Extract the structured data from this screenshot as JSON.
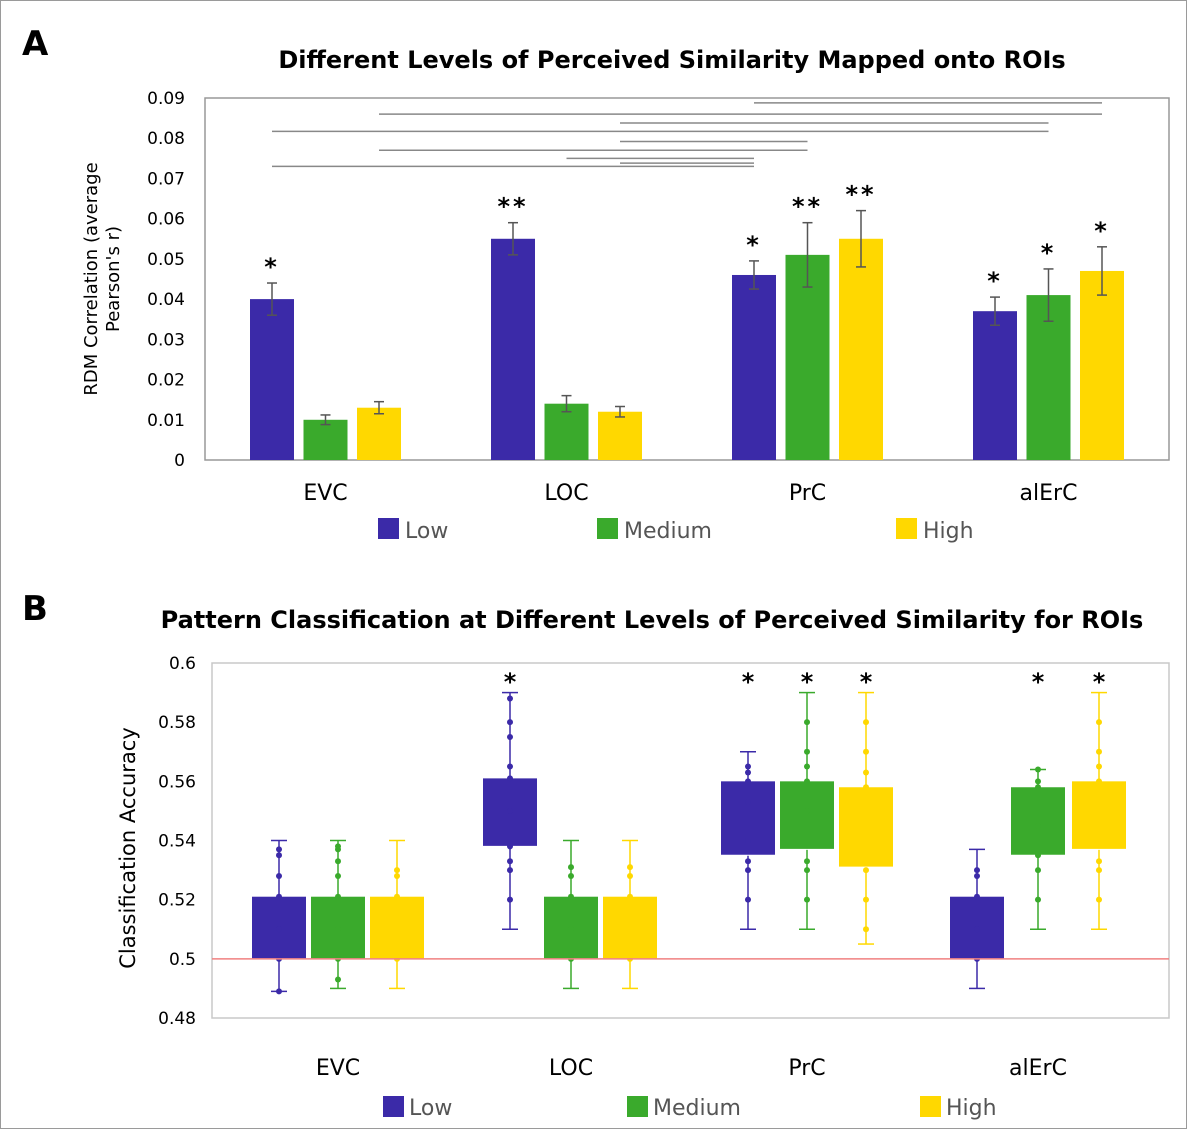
{
  "colors": {
    "low": "#3b2aa8",
    "medium": "#3aaa2c",
    "high": "#ffd800",
    "baseline": "#f08080",
    "axis": "#999999",
    "bracket": "#888888"
  },
  "chart_data": [
    {
      "panel": "A",
      "type": "bar",
      "title": "Different Levels of Perceived Similarity Mapped onto ROIs",
      "ylabel": "RDM Correlation (average Pearson's r)",
      "ylabel_lines": [
        "RDM Correlation (average",
        "Pearson's r)"
      ],
      "xlabel": "",
      "ylim": [
        0,
        0.09
      ],
      "yticks": [
        "0",
        "0.01",
        "0.02",
        "0.03",
        "0.04",
        "0.05",
        "0.06",
        "0.07",
        "0.08",
        "0.09"
      ],
      "categories": [
        "EVC",
        "LOC",
        "PrC",
        "alErC"
      ],
      "legend": "bottom",
      "series": [
        {
          "name": "Low",
          "values": [
            0.04,
            0.055,
            0.046,
            0.037
          ],
          "err": [
            0.004,
            0.004,
            0.0035,
            0.0035
          ],
          "sig": [
            "*",
            "**",
            "*",
            "*"
          ]
        },
        {
          "name": "Medium",
          "values": [
            0.01,
            0.014,
            0.051,
            0.041
          ],
          "err": [
            0.0012,
            0.002,
            0.008,
            0.0065
          ],
          "sig": [
            "",
            "",
            "**",
            "*"
          ]
        },
        {
          "name": "High",
          "values": [
            0.013,
            0.012,
            0.055,
            0.047
          ],
          "err": [
            0.0015,
            0.0013,
            0.007,
            0.006
          ],
          "sig": [
            "",
            "",
            "**",
            "*"
          ]
        }
      ],
      "comparisons": [
        {
          "from": [
            "PrC",
            "Low"
          ],
          "to": [
            "alErC",
            "High"
          ],
          "y": 0.0888
        },
        {
          "from": [
            "EVC",
            "High"
          ],
          "to": [
            "alErC",
            "High"
          ],
          "y": 0.086
        },
        {
          "from": [
            "LOC",
            "High"
          ],
          "to": [
            "alErC",
            "Medium"
          ],
          "y": 0.0838
        },
        {
          "from": [
            "EVC",
            "Low"
          ],
          "to": [
            "alErC",
            "Medium"
          ],
          "y": 0.0817
        },
        {
          "from": [
            "LOC",
            "High"
          ],
          "to": [
            "PrC",
            "Medium"
          ],
          "y": 0.0792
        },
        {
          "from": [
            "EVC",
            "High"
          ],
          "to": [
            "PrC",
            "Medium"
          ],
          "y": 0.077
        },
        {
          "from": [
            "LOC",
            "Medium"
          ],
          "to": [
            "PrC",
            "Low"
          ],
          "y": 0.075
        },
        {
          "from": [
            "LOC",
            "High"
          ],
          "to": [
            "PrC",
            "Low"
          ],
          "y": 0.0738
        },
        {
          "from": [
            "EVC",
            "Low"
          ],
          "to": [
            "PrC",
            "Low"
          ],
          "y": 0.073
        }
      ]
    },
    {
      "panel": "B",
      "type": "box",
      "title": "Pattern Classification at Different Levels of Perceived Similarity for ROIs",
      "ylabel": "Classification Accuracy",
      "xlabel": "",
      "ylim": [
        0.48,
        0.6
      ],
      "yticks": [
        "0.48",
        "0.5",
        "0.52",
        "0.54",
        "0.56",
        "0.58",
        "0.6"
      ],
      "categories": [
        "EVC",
        "LOC",
        "PrC",
        "alErC"
      ],
      "chance": 0.5,
      "legend": "bottom",
      "series": [
        {
          "name": "Low",
          "boxes": [
            {
              "min": 0.489,
              "q1": 0.5,
              "median": 0.5,
              "q3": 0.521,
              "max": 0.54,
              "points": [
                0.489,
                0.5,
                0.51,
                0.521,
                0.528,
                0.535,
                0.537
              ],
              "sig": ""
            },
            {
              "min": 0.51,
              "q1": 0.538,
              "median": 0.538,
              "q3": 0.561,
              "max": 0.59,
              "points": [
                0.52,
                0.53,
                0.533,
                0.538,
                0.55,
                0.561,
                0.565,
                0.575,
                0.58,
                0.588
              ],
              "sig": "*"
            },
            {
              "min": 0.51,
              "q1": 0.535,
              "median": 0.535,
              "q3": 0.56,
              "max": 0.57,
              "points": [
                0.52,
                0.53,
                0.533,
                0.54,
                0.553,
                0.56,
                0.563,
                0.565
              ],
              "sig": "*"
            },
            {
              "min": 0.49,
              "q1": 0.5,
              "median": 0.5,
              "q3": 0.521,
              "max": 0.537,
              "points": [
                0.5,
                0.51,
                0.521,
                0.528,
                0.53
              ],
              "sig": ""
            }
          ]
        },
        {
          "name": "Medium",
          "boxes": [
            {
              "min": 0.49,
              "q1": 0.5,
              "median": 0.5,
              "q3": 0.521,
              "max": 0.54,
              "points": [
                0.493,
                0.5,
                0.51,
                0.521,
                0.528,
                0.533,
                0.537,
                0.538
              ],
              "sig": ""
            },
            {
              "min": 0.49,
              "q1": 0.5,
              "median": 0.5,
              "q3": 0.521,
              "max": 0.54,
              "points": [
                0.5,
                0.51,
                0.521,
                0.528,
                0.531
              ],
              "sig": ""
            },
            {
              "min": 0.51,
              "q1": 0.537,
              "median": 0.537,
              "q3": 0.56,
              "max": 0.59,
              "points": [
                0.52,
                0.53,
                0.533,
                0.54,
                0.55,
                0.56,
                0.565,
                0.57,
                0.58
              ],
              "sig": "*"
            },
            {
              "min": 0.51,
              "q1": 0.535,
              "median": 0.535,
              "q3": 0.558,
              "max": 0.564,
              "points": [
                0.52,
                0.53,
                0.535,
                0.545,
                0.558,
                0.56,
                0.564
              ],
              "sig": "*"
            }
          ]
        },
        {
          "name": "High",
          "boxes": [
            {
              "min": 0.49,
              "q1": 0.5,
              "median": 0.5,
              "q3": 0.521,
              "max": 0.54,
              "points": [
                0.5,
                0.51,
                0.521,
                0.528,
                0.53
              ],
              "sig": ""
            },
            {
              "min": 0.49,
              "q1": 0.5,
              "median": 0.5,
              "q3": 0.521,
              "max": 0.54,
              "points": [
                0.5,
                0.51,
                0.521,
                0.528,
                0.531
              ],
              "sig": ""
            },
            {
              "min": 0.505,
              "q1": 0.531,
              "median": 0.531,
              "q3": 0.558,
              "max": 0.59,
              "points": [
                0.51,
                0.52,
                0.53,
                0.54,
                0.55,
                0.558,
                0.563,
                0.57,
                0.58
              ],
              "sig": "*"
            },
            {
              "min": 0.51,
              "q1": 0.537,
              "median": 0.537,
              "q3": 0.56,
              "max": 0.59,
              "points": [
                0.52,
                0.53,
                0.533,
                0.54,
                0.55,
                0.56,
                0.565,
                0.57,
                0.58
              ],
              "sig": "*"
            }
          ]
        }
      ]
    }
  ],
  "panel_labels": [
    "A",
    "B"
  ]
}
